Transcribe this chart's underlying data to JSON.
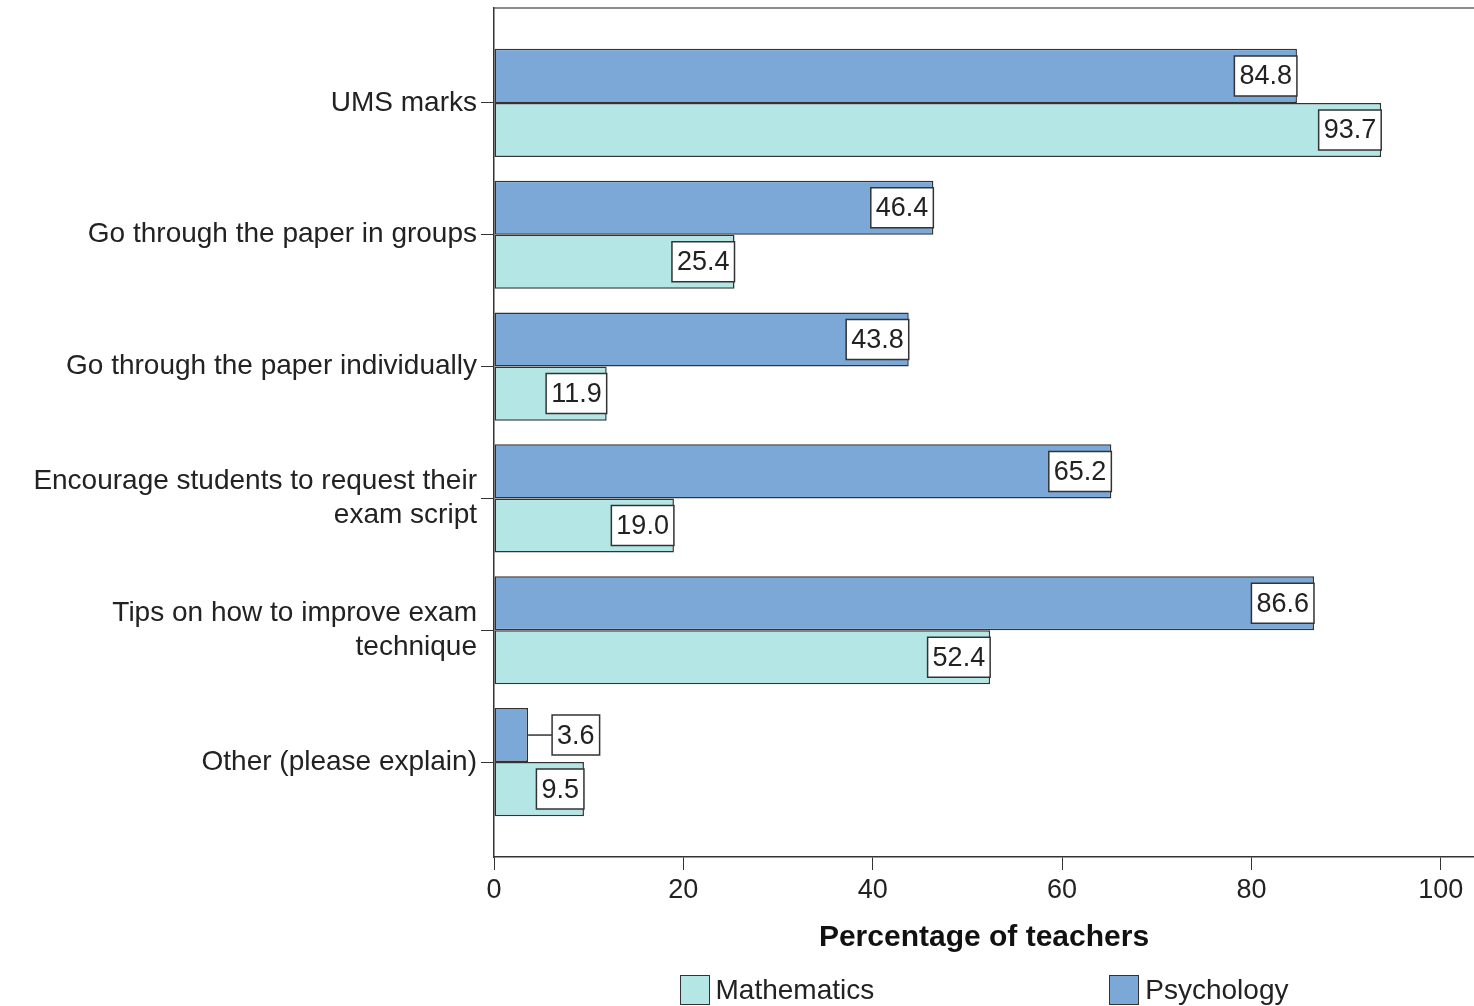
{
  "chart_data": {
    "type": "bar",
    "orientation": "horizontal",
    "categories": [
      "UMS marks",
      "Go through the paper in groups",
      "Go through the paper individually",
      "Encourage students to request their exam script",
      "Tips on how to improve exam technique",
      "Other (please explain)"
    ],
    "xlabel": "Percentage of teachers",
    "series": [
      {
        "name": "Mathematics",
        "color": "#b4e6e6",
        "values": [
          93.7,
          25.4,
          11.9,
          19.0,
          52.4,
          9.5
        ],
        "value_labels": [
          "93.7",
          "25.4",
          "11.9",
          "19.0",
          "52.4",
          "9.5"
        ]
      },
      {
        "name": "Psychology",
        "color": "#7ba8d6",
        "values": [
          84.8,
          46.4,
          43.8,
          65.2,
          86.6,
          3.6
        ],
        "value_labels": [
          "84.8",
          "46.4",
          "43.8",
          "65.2",
          "86.6",
          "3.6"
        ]
      }
    ],
    "xlim": [
      0,
      103.5
    ],
    "xticks": [
      0,
      20,
      40,
      60,
      80,
      100
    ],
    "grid": false,
    "legend": "bottom"
  }
}
